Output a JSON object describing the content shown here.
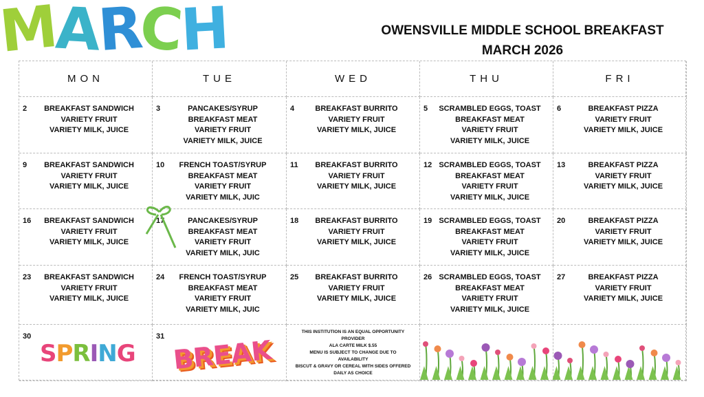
{
  "header": {
    "logo_text": "MARCH",
    "logo_colors": [
      "#9fcf3a",
      "#3bb3c9",
      "#2f8fd6",
      "#7ccf4f",
      "#3fb0e0"
    ],
    "title_line1": "OWENSVILLE MIDDLE SCHOOL BREAKFAST",
    "title_line2": "MARCH 2026"
  },
  "days": [
    "MON",
    "TUE",
    "WED",
    "THU",
    "FRI"
  ],
  "weeks": [
    [
      {
        "n": "2",
        "items": [
          "BREAKFAST SANDWICH",
          "VARIETY FRUIT",
          "VARIETY MILK, JUICE"
        ]
      },
      {
        "n": "3",
        "items": [
          "PANCAKES/SYRUP",
          "BREAKFAST MEAT",
          "VARIETY FRUIT",
          "VARIETY MILK, JUICE"
        ]
      },
      {
        "n": "4",
        "items": [
          "BREAKFAST BURRITO",
          "VARIETY FRUIT",
          "VARIETY MILK, JUICE"
        ]
      },
      {
        "n": "5",
        "items": [
          "SCRAMBLED EGGS, TOAST",
          "BREAKFAST MEAT",
          "VARIETY FRUIT",
          "VARIETY MILK, JUICE"
        ]
      },
      {
        "n": "6",
        "items": [
          "BREAKFAST PIZZA",
          "VARIETY FRUIT",
          "VARIETY MILK, JUICE"
        ]
      }
    ],
    [
      {
        "n": "9",
        "items": [
          "BREAKFAST SANDWICH",
          "VARIETY FRUIT",
          "VARIETY MILK, JUICE"
        ]
      },
      {
        "n": "10",
        "items": [
          "FRENCH TOAST/SYRUP",
          "BREAKFAST MEAT",
          "VARIETY FRUIT",
          "VARIETY MILK, JUIC"
        ]
      },
      {
        "n": "11",
        "items": [
          "BREAKFAST BURRITO",
          "VARIETY FRUIT",
          "VARIETY MILK, JUICE"
        ]
      },
      {
        "n": "12",
        "items": [
          "SCRAMBLED EGGS, TOAST",
          "BREAKFAST MEAT",
          "VARIETY FRUIT",
          "VARIETY MILK, JUICE"
        ]
      },
      {
        "n": "13",
        "items": [
          "BREAKFAST PIZZA",
          "VARIETY FRUIT",
          "VARIETY MILK, JUICE"
        ]
      }
    ],
    [
      {
        "n": "16",
        "items": [
          "BREAKFAST SANDWICH",
          "VARIETY FRUIT",
          "VARIETY MILK, JUICE"
        ]
      },
      {
        "n": "17",
        "items": [
          "PANCAKES/SYRUP",
          "BREAKFAST MEAT",
          "VARIETY FRUIT",
          "VARIETY MILK, JUIC"
        ]
      },
      {
        "n": "18",
        "items": [
          "BREAKFAST BURRITO",
          "VARIETY FRUIT",
          "VARIETY MILK, JUICE"
        ]
      },
      {
        "n": "19",
        "items": [
          "SCRAMBLED EGGS, TOAST",
          "BREAKFAST MEAT",
          "VARIETY FRUIT",
          "VARIETY MILK, JUICE"
        ]
      },
      {
        "n": "20",
        "items": [
          "BREAKFAST PIZZA",
          "VARIETY FRUIT",
          "VARIETY MILK, JUICE"
        ]
      }
    ],
    [
      {
        "n": "23",
        "items": [
          "BREAKFAST SANDWICH",
          "VARIETY FRUIT",
          "VARIETY MILK, JUICE"
        ]
      },
      {
        "n": "24",
        "items": [
          "FRENCH TOAST/SYRUP",
          "BREAKFAST MEAT",
          "VARIETY FRUIT",
          "VARIETY MILK, JUIC"
        ]
      },
      {
        "n": "25",
        "items": [
          "BREAKFAST BURRITO",
          "VARIETY FRUIT",
          "VARIETY MILK, JUICE"
        ]
      },
      {
        "n": "26",
        "items": [
          "SCRAMBLED EGGS, TOAST",
          "BREAKFAST MEAT",
          "VARIETY FRUIT",
          "VARIETY MILK, JUICE"
        ]
      },
      {
        "n": "27",
        "items": [
          "BREAKFAST PIZZA",
          "VARIETY FRUIT",
          "VARIETY MILK, JUICE"
        ]
      }
    ]
  ],
  "last_row": {
    "mon_n": "30",
    "tue_n": "31",
    "spring_text": "SPRING",
    "break_text": "BREAK",
    "notes": [
      "THIS INSTITUTION IS AN EQUAL OPPORTUNITY",
      "PROVIDER",
      "ALA CARTE MILK $.55",
      "MENU IS SUBJECT TO CHANGE DUE TO AVAILABILITY",
      "BISCUT & GRAVY OR CEREAL WITH SIDES OFFERED",
      "DAILY AS CHOICE"
    ]
  }
}
